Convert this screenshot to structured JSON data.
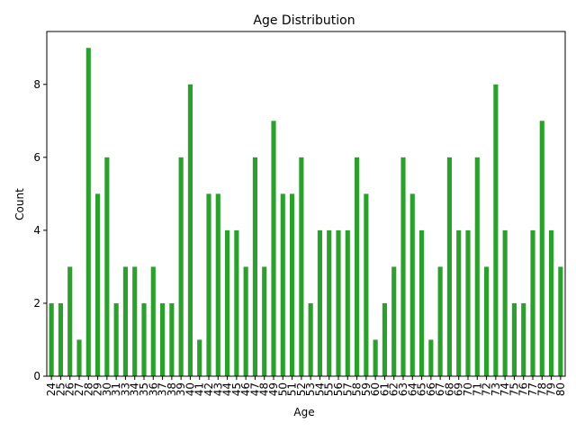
{
  "chart_data": {
    "type": "bar",
    "title": "Age Distribution",
    "x_label": "Age",
    "y_label": "Count",
    "categories": [
      "24",
      "25",
      "26",
      "27",
      "28",
      "29",
      "30",
      "31",
      "33",
      "34",
      "35",
      "36",
      "37",
      "38",
      "39",
      "40",
      "41",
      "42",
      "43",
      "44",
      "45",
      "46",
      "47",
      "48",
      "49",
      "50",
      "51",
      "52",
      "53",
      "54",
      "55",
      "56",
      "57",
      "58",
      "59",
      "60",
      "61",
      "62",
      "63",
      "64",
      "65",
      "66",
      "67",
      "68",
      "69",
      "70",
      "71",
      "72",
      "73",
      "74",
      "75",
      "76",
      "77",
      "78",
      "79",
      "80"
    ],
    "values": [
      2,
      2,
      3,
      1,
      9,
      5,
      6,
      2,
      3,
      3,
      2,
      3,
      2,
      2,
      6,
      8,
      1,
      5,
      5,
      4,
      4,
      3,
      6,
      3,
      7,
      5,
      5,
      6,
      2,
      4,
      4,
      4,
      4,
      6,
      5,
      1,
      2,
      3,
      6,
      5,
      4,
      1,
      3,
      6,
      4,
      4,
      6,
      3,
      8,
      4,
      2,
      2,
      4,
      7,
      4,
      3
    ],
    "color": "#2ca02c",
    "ylim": [
      0,
      9.45
    ],
    "yticks": [
      0,
      2,
      4,
      6,
      8
    ],
    "grid": false
  }
}
